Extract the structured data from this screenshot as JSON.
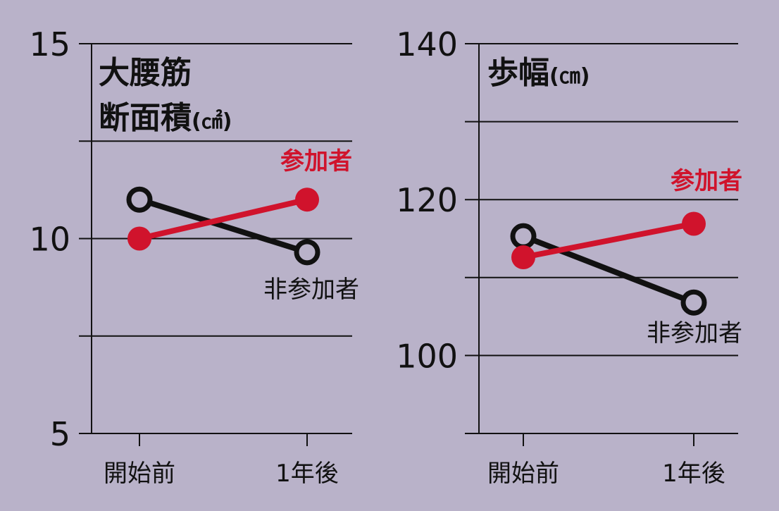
{
  "colors": {
    "background": "#b9b2c9",
    "axis": "#111111",
    "participants": "#d0132c",
    "non_participants": "#111111"
  },
  "chart_data": [
    {
      "type": "line",
      "title": "大腰筋断面積",
      "title_lines": [
        "大腰筋",
        "断面積"
      ],
      "unit": "(㎠)",
      "categories": [
        "開始前",
        "1年後"
      ],
      "y_ticks": [
        "15",
        "10",
        "5"
      ],
      "ylim": [
        5,
        15
      ],
      "gridlines": [
        7.5,
        10,
        12.5,
        15
      ],
      "series": [
        {
          "name": "参加者",
          "values": [
            10.0,
            11.0
          ],
          "marker": "filled",
          "color": "#d0132c"
        },
        {
          "name": "非参加者",
          "values": [
            11.0,
            9.65
          ],
          "marker": "hollow",
          "color": "#111111"
        }
      ]
    },
    {
      "type": "line",
      "title": "歩幅",
      "title_lines": [
        "歩幅"
      ],
      "unit": "(㎝)",
      "categories": [
        "開始前",
        "1年後"
      ],
      "y_ticks": [
        "140",
        "120",
        "100"
      ],
      "ylim": [
        90,
        140
      ],
      "gridlines": [
        100,
        110,
        120,
        130,
        140
      ],
      "series": [
        {
          "name": "参加者",
          "values": [
            112.6,
            116.9
          ],
          "marker": "filled",
          "color": "#d0132c"
        },
        {
          "name": "非参加者",
          "values": [
            115.3,
            106.8
          ],
          "marker": "hollow",
          "color": "#111111"
        }
      ]
    }
  ]
}
